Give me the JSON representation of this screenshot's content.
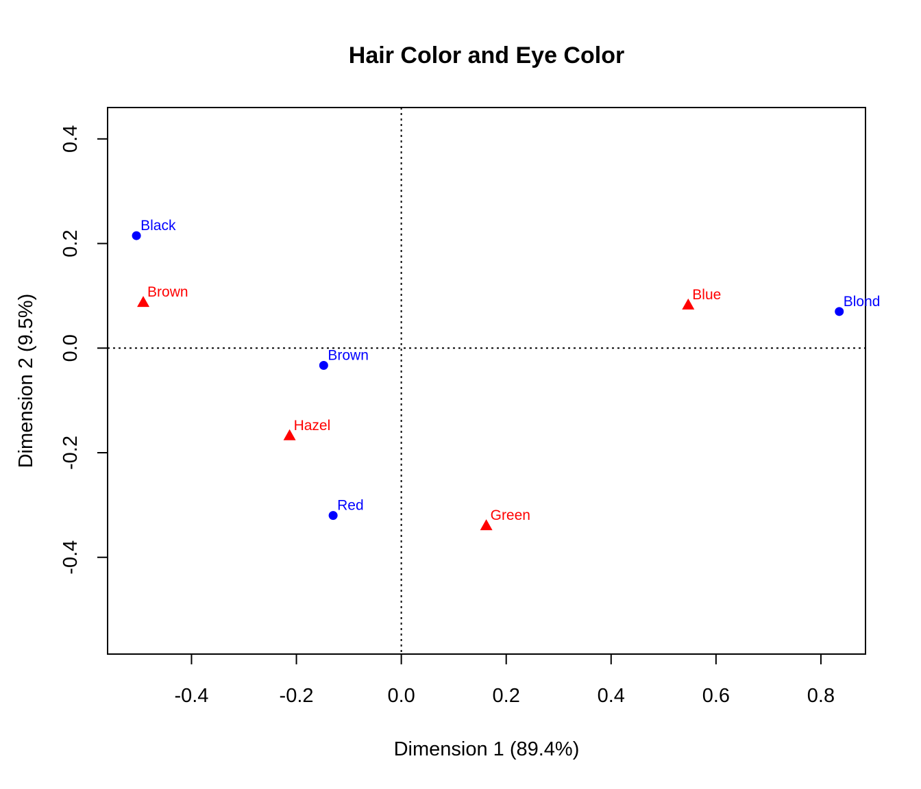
{
  "chart_data": {
    "type": "scatter",
    "title": "Hair Color and Eye Color",
    "xlabel": "Dimension 1 (89.4%)",
    "ylabel": "Dimension 2 (9.5%)",
    "xlim": [
      -0.56,
      0.885
    ],
    "ylim": [
      -0.585,
      0.46
    ],
    "xticks": [
      -0.4,
      -0.2,
      0.0,
      0.2,
      0.4,
      0.6,
      0.8
    ],
    "yticks": [
      -0.4,
      -0.2,
      0.0,
      0.2,
      0.4
    ],
    "xtick_labels": [
      "-0.4",
      "-0.2",
      "0.0",
      "0.2",
      "0.4",
      "0.6",
      "0.8"
    ],
    "ytick_labels": [
      "-0.4",
      "-0.2",
      "0.0",
      "0.2",
      "0.4"
    ],
    "reference_lines": {
      "x": 0.0,
      "y": 0.0,
      "style": "dotted"
    },
    "grid": false,
    "series": [
      {
        "color": "#0000ff",
        "marker": "circle",
        "points": [
          {
            "label": "Black",
            "x": -0.505,
            "y": 0.215
          },
          {
            "label": "Brown",
            "x": -0.148,
            "y": -0.033
          },
          {
            "label": "Red",
            "x": -0.13,
            "y": -0.32
          },
          {
            "label": "Blond",
            "x": 0.835,
            "y": 0.07
          }
        ]
      },
      {
        "color": "#ff0000",
        "marker": "triangle",
        "points": [
          {
            "label": "Brown",
            "x": -0.492,
            "y": 0.088
          },
          {
            "label": "Hazel",
            "x": -0.213,
            "y": -0.167
          },
          {
            "label": "Green",
            "x": 0.162,
            "y": -0.339
          },
          {
            "label": "Blue",
            "x": 0.547,
            "y": 0.083
          }
        ]
      }
    ]
  }
}
